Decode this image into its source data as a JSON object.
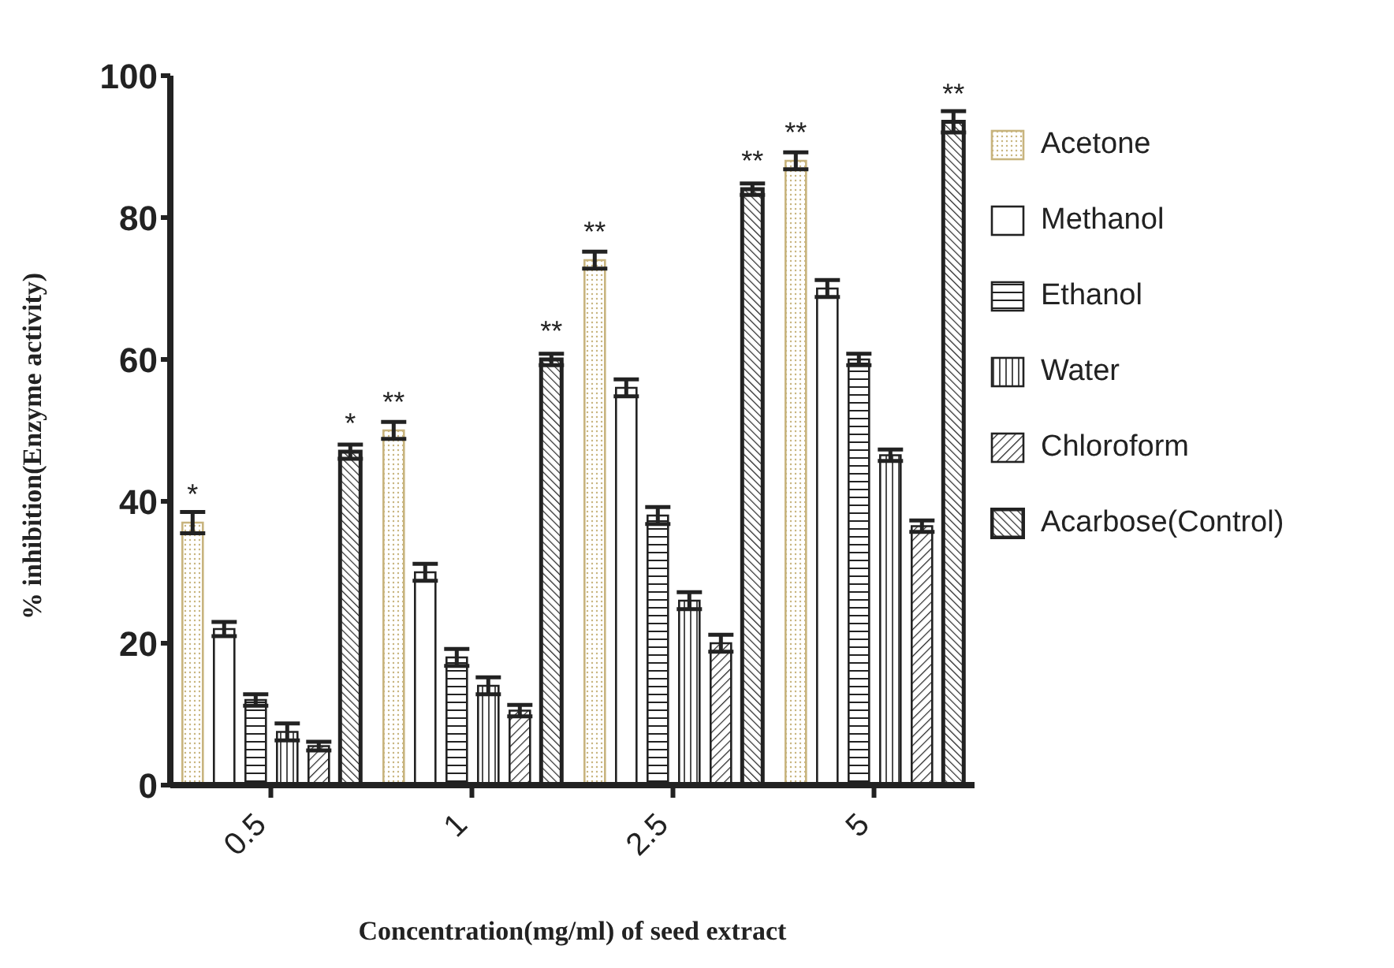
{
  "chart_data": {
    "type": "bar",
    "xlabel": "Concentration(mg/ml) of seed extract",
    "ylabel": "% inhibition(Enzyme activity)",
    "categories": [
      "0.5",
      "1",
      "2.5",
      "5"
    ],
    "series": [
      {
        "name": "Acetone",
        "color": "#c8b47e",
        "values": [
          37,
          50,
          74,
          88
        ],
        "errors": [
          1.5,
          1.2,
          1.2,
          1.2
        ],
        "value_labels": [
          "*",
          "**",
          "**",
          "**"
        ]
      },
      {
        "name": "Methanol",
        "color": "#222222",
        "values": [
          22,
          30,
          56,
          70
        ],
        "errors": [
          1,
          1.2,
          1.2,
          1.2
        ]
      },
      {
        "name": "Ethanol",
        "color": "#222222",
        "values": [
          12,
          18,
          38,
          60
        ],
        "errors": [
          0.8,
          1.2,
          1.2,
          0.8
        ]
      },
      {
        "name": "Water",
        "color": "#222222",
        "values": [
          7.5,
          14,
          26,
          46.5
        ],
        "errors": [
          1.2,
          1.2,
          1.2,
          0.8
        ]
      },
      {
        "name": "Chloroform",
        "color": "#222222",
        "values": [
          5.5,
          10.5,
          20,
          36.5
        ],
        "errors": [
          0.6,
          0.8,
          1.2,
          0.8
        ]
      },
      {
        "name": "Acarbose(Control)",
        "color": "#222222",
        "values": [
          47,
          60,
          84,
          93.5
        ],
        "errors": [
          1,
          0.8,
          0.8,
          1.5
        ],
        "value_labels": [
          "*",
          "**",
          "**",
          "**"
        ]
      }
    ],
    "ylim": [
      0,
      100
    ],
    "yticks": [
      0,
      20,
      40,
      60,
      80,
      100
    ],
    "grid": false,
    "legend": "top right"
  }
}
